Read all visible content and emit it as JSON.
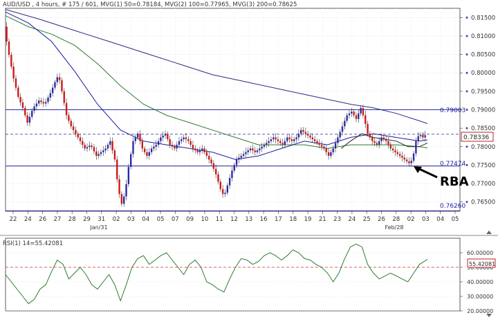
{
  "header": {
    "title": "AUD/USD , 4 hours, # 175 / 601, MVG(1) 50=0.78184, MVG(2) 100=0.77965, MVG(3) 200=0.78625"
  },
  "colors": {
    "bull": "#2a2aa8",
    "bear": "#d01818",
    "ma50": "#1a1aa0",
    "ma100": "#2e7a2e",
    "ma200": "#2a2a80",
    "ma_short": "#222222",
    "hline": "#2020a0",
    "rsi": "#2e7a2e",
    "rsi_mid": "#cc3333",
    "axis": "#4444aa"
  },
  "annotations": {
    "rba": "RBA",
    "level_top": "0.79003",
    "level_mid": "0.77474",
    "level_low": "0.76260",
    "current": "0.78336",
    "rsi_current": "55.42081"
  },
  "chart_data": [
    {
      "type": "candlestick",
      "title": "AUD/USD , 4 hours",
      "ylim": [
        0.7625,
        0.8175
      ],
      "y_ticks": [
        "0.81500",
        "0.81000",
        "0.80500",
        "0.80000",
        "0.79500",
        "0.79000",
        "0.78500",
        "0.78000",
        "0.77500",
        "0.77000",
        "0.76500"
      ],
      "x_ticks": [
        "22",
        "24",
        "26",
        "27",
        "28",
        "29",
        "31",
        "02",
        "03",
        "04",
        "05",
        "07",
        "09",
        "10",
        "11",
        "12",
        "13",
        "16",
        "17",
        "18",
        "19",
        "21",
        "23",
        "24",
        "25",
        "26",
        "28",
        "02",
        "03",
        "04",
        "05"
      ],
      "x_month_labels": [
        "Jan/31",
        "Feb/28"
      ],
      "horizontal_levels": [
        0.79003,
        0.77474,
        0.7626
      ],
      "current_price": 0.78336,
      "moving_averages": [
        {
          "name": "MVG(1) 50",
          "last": 0.78184
        },
        {
          "name": "MVG(2) 100",
          "last": 0.77965
        },
        {
          "name": "MVG(3) 200",
          "last": 0.78625
        }
      ],
      "price_path": [
        [
          0,
          0.8125
        ],
        [
          3,
          0.8065
        ],
        [
          8,
          0.7985
        ],
        [
          12,
          0.7935
        ],
        [
          16,
          0.7905
        ],
        [
          20,
          0.7865
        ],
        [
          25,
          0.7905
        ],
        [
          30,
          0.7925
        ],
        [
          35,
          0.7915
        ],
        [
          40,
          0.7945
        ],
        [
          44,
          0.7975
        ],
        [
          47,
          0.7995
        ],
        [
          51,
          0.7935
        ],
        [
          54,
          0.7885
        ],
        [
          58,
          0.7855
        ],
        [
          62,
          0.7835
        ],
        [
          66,
          0.7815
        ],
        [
          70,
          0.7795
        ],
        [
          75,
          0.7805
        ],
        [
          80,
          0.7775
        ],
        [
          84,
          0.7785
        ],
        [
          88,
          0.7795
        ],
        [
          92,
          0.7815
        ],
        [
          96,
          0.7765
        ],
        [
          99,
          0.7685
        ],
        [
          102,
          0.7645
        ],
        [
          105,
          0.7675
        ],
        [
          108,
          0.7745
        ],
        [
          112,
          0.7815
        ],
        [
          116,
          0.7835
        ],
        [
          120,
          0.7795
        ],
        [
          124,
          0.7775
        ],
        [
          128,
          0.7795
        ],
        [
          132,
          0.7805
        ],
        [
          136,
          0.7825
        ],
        [
          140,
          0.7835
        ],
        [
          144,
          0.7805
        ],
        [
          148,
          0.7795
        ],
        [
          152,
          0.7815
        ],
        [
          156,
          0.7825
        ],
        [
          160,
          0.7815
        ],
        [
          164,
          0.7795
        ],
        [
          168,
          0.7785
        ],
        [
          172,
          0.7795
        ],
        [
          176,
          0.7775
        ],
        [
          180,
          0.7755
        ],
        [
          184,
          0.7725
        ],
        [
          188,
          0.7685
        ],
        [
          191,
          0.7665
        ],
        [
          194,
          0.7695
        ],
        [
          198,
          0.7735
        ],
        [
          202,
          0.7765
        ],
        [
          206,
          0.7775
        ],
        [
          210,
          0.7785
        ],
        [
          214,
          0.7795
        ],
        [
          218,
          0.7785
        ],
        [
          222,
          0.7795
        ],
        [
          226,
          0.7805
        ],
        [
          230,
          0.7815
        ],
        [
          234,
          0.7825
        ],
        [
          238,
          0.7815
        ],
        [
          242,
          0.7805
        ],
        [
          246,
          0.7825
        ],
        [
          250,
          0.7815
        ],
        [
          254,
          0.7825
        ],
        [
          258,
          0.7845
        ],
        [
          262,
          0.7835
        ],
        [
          266,
          0.7825
        ],
        [
          270,
          0.7815
        ],
        [
          274,
          0.7805
        ],
        [
          278,
          0.7795
        ],
        [
          282,
          0.7775
        ],
        [
          286,
          0.7795
        ],
        [
          290,
          0.7825
        ],
        [
          294,
          0.7855
        ],
        [
          298,
          0.7885
        ],
        [
          302,
          0.7895
        ],
        [
          306,
          0.7875
        ],
        [
          310,
          0.7905
        ],
        [
          313,
          0.7875
        ],
        [
          316,
          0.7835
        ],
        [
          320,
          0.7815
        ],
        [
          324,
          0.7805
        ],
        [
          328,
          0.7825
        ],
        [
          332,
          0.7815
        ],
        [
          336,
          0.7795
        ],
        [
          340,
          0.7785
        ],
        [
          344,
          0.7775
        ],
        [
          348,
          0.7765
        ],
        [
          352,
          0.7755
        ],
        [
          355,
          0.7765
        ],
        [
          358,
          0.7815
        ],
        [
          361,
          0.7835
        ],
        [
          364,
          0.7825
        ],
        [
          367,
          0.7834
        ]
      ],
      "ma50_path": [
        [
          0,
          0.8165
        ],
        [
          20,
          0.8135
        ],
        [
          40,
          0.8085
        ],
        [
          60,
          0.8005
        ],
        [
          80,
          0.7915
        ],
        [
          100,
          0.7845
        ],
        [
          120,
          0.7815
        ],
        [
          140,
          0.7805
        ],
        [
          160,
          0.7795
        ],
        [
          180,
          0.7785
        ],
        [
          200,
          0.7765
        ],
        [
          220,
          0.7775
        ],
        [
          240,
          0.7795
        ],
        [
          260,
          0.7815
        ],
        [
          280,
          0.7805
        ],
        [
          300,
          0.7825
        ],
        [
          320,
          0.7835
        ],
        [
          340,
          0.7825
        ],
        [
          360,
          0.7815
        ],
        [
          367,
          0.78184
        ]
      ],
      "ma100_path": [
        [
          0,
          0.8155
        ],
        [
          20,
          0.8125
        ],
        [
          40,
          0.8105
        ],
        [
          60,
          0.8075
        ],
        [
          80,
          0.8025
        ],
        [
          100,
          0.7965
        ],
        [
          120,
          0.7915
        ],
        [
          140,
          0.7885
        ],
        [
          160,
          0.7865
        ],
        [
          180,
          0.7845
        ],
        [
          200,
          0.7825
        ],
        [
          220,
          0.7805
        ],
        [
          240,
          0.7805
        ],
        [
          260,
          0.7805
        ],
        [
          280,
          0.7795
        ],
        [
          300,
          0.7805
        ],
        [
          320,
          0.7805
        ],
        [
          340,
          0.7805
        ],
        [
          360,
          0.78
        ],
        [
          367,
          0.77965
        ]
      ],
      "ma200_path": [
        [
          0,
          0.8172
        ],
        [
          30,
          0.8145
        ],
        [
          60,
          0.8115
        ],
        [
          90,
          0.8085
        ],
        [
          120,
          0.8055
        ],
        [
          150,
          0.8025
        ],
        [
          180,
          0.7995
        ],
        [
          210,
          0.7975
        ],
        [
          240,
          0.7955
        ],
        [
          270,
          0.7935
        ],
        [
          300,
          0.7915
        ],
        [
          320,
          0.7905
        ],
        [
          340,
          0.789
        ],
        [
          360,
          0.787
        ],
        [
          367,
          0.78625
        ]
      ],
      "short_ma_path": [
        [
          292,
          0.7795
        ],
        [
          300,
          0.7815
        ],
        [
          310,
          0.7835
        ],
        [
          320,
          0.7825
        ],
        [
          330,
          0.782
        ],
        [
          340,
          0.7815
        ],
        [
          350,
          0.78
        ],
        [
          360,
          0.78
        ],
        [
          367,
          0.781
        ]
      ]
    },
    {
      "type": "line",
      "title": "RSI(1) 14=55.42081",
      "ylim": [
        20,
        70
      ],
      "y_ticks": [
        "60.00000",
        "50.00000",
        "40.00000",
        "30.00000",
        "20.00000"
      ],
      "midline": 50,
      "current": 55.42081,
      "series": [
        {
          "name": "RSI(1) 14",
          "values": [
            [
              0,
              45
            ],
            [
              5,
              40
            ],
            [
              10,
              35
            ],
            [
              15,
              30
            ],
            [
              20,
              25
            ],
            [
              25,
              28
            ],
            [
              30,
              35
            ],
            [
              35,
              38
            ],
            [
              40,
              47
            ],
            [
              45,
              55
            ],
            [
              50,
              52
            ],
            [
              55,
              42
            ],
            [
              60,
              46
            ],
            [
              65,
              50
            ],
            [
              70,
              45
            ],
            [
              75,
              38
            ],
            [
              80,
              35
            ],
            [
              85,
              40
            ],
            [
              90,
              45
            ],
            [
              95,
              38
            ],
            [
              100,
              27
            ],
            [
              105,
              38
            ],
            [
              110,
              50
            ],
            [
              115,
              56
            ],
            [
              120,
              58
            ],
            [
              125,
              52
            ],
            [
              130,
              55
            ],
            [
              135,
              58
            ],
            [
              140,
              60
            ],
            [
              145,
              55
            ],
            [
              150,
              50
            ],
            [
              155,
              45
            ],
            [
              160,
              52
            ],
            [
              165,
              55
            ],
            [
              170,
              50
            ],
            [
              175,
              40
            ],
            [
              180,
              38
            ],
            [
              185,
              35
            ],
            [
              190,
              33
            ],
            [
              195,
              42
            ],
            [
              200,
              50
            ],
            [
              205,
              56
            ],
            [
              210,
              55
            ],
            [
              215,
              52
            ],
            [
              220,
              54
            ],
            [
              225,
              58
            ],
            [
              230,
              60
            ],
            [
              235,
              58
            ],
            [
              240,
              55
            ],
            [
              245,
              58
            ],
            [
              250,
              62
            ],
            [
              255,
              60
            ],
            [
              260,
              56
            ],
            [
              265,
              55
            ],
            [
              270,
              52
            ],
            [
              275,
              50
            ],
            [
              280,
              46
            ],
            [
              285,
              40
            ],
            [
              290,
              46
            ],
            [
              295,
              56
            ],
            [
              300,
              64
            ],
            [
              305,
              66
            ],
            [
              310,
              64
            ],
            [
              315,
              52
            ],
            [
              320,
              46
            ],
            [
              325,
              42
            ],
            [
              330,
              44
            ],
            [
              335,
              46
            ],
            [
              340,
              44
            ],
            [
              345,
              42
            ],
            [
              350,
              40
            ],
            [
              355,
              46
            ],
            [
              360,
              52
            ],
            [
              367,
              55.42
            ]
          ]
        }
      ]
    }
  ]
}
